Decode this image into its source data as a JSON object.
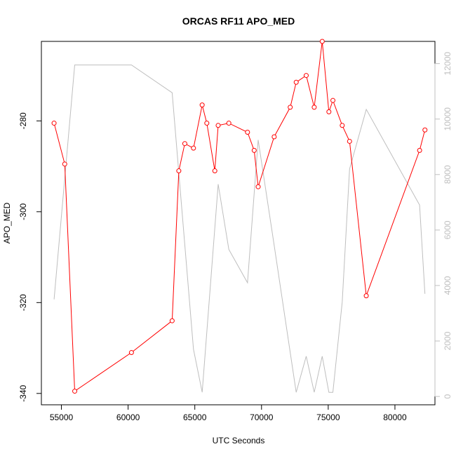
{
  "chart_data": {
    "type": "line",
    "title": "ORCAS RF11 APO_MED",
    "xlabel": "UTC Seconds",
    "ylabel": "APO_MED",
    "xlim": [
      53500,
      83000
    ],
    "ylim": [
      -342.5,
      -262.5
    ],
    "y2lim": [
      -300,
      12800
    ],
    "xticks": [
      55000,
      60000,
      65000,
      70000,
      75000,
      80000
    ],
    "yticks": [
      -340,
      -320,
      -300,
      -280
    ],
    "y2ticks": [
      0,
      2000,
      4000,
      6000,
      8000,
      10000,
      12000
    ],
    "series": [
      {
        "color": "#ff0000",
        "marker": "open-circle",
        "axis": "left",
        "x": [
          54450,
          55250,
          56000,
          60250,
          63300,
          63800,
          64250,
          64900,
          65550,
          65900,
          66500,
          66750,
          67550,
          68950,
          69450,
          69750,
          70950,
          72150,
          72600,
          73350,
          73950,
          74550,
          75050,
          75350,
          76050,
          76600,
          77850,
          81850,
          82250
        ],
        "y": [
          -280.5,
          -289.5,
          -339.5,
          -331,
          -324,
          -291,
          -285,
          -286,
          -276.5,
          -280.5,
          -291,
          -281,
          -280.5,
          -282.5,
          -286.5,
          -294.5,
          -283.5,
          -277,
          -271.5,
          -270,
          -277,
          -262.5,
          -278,
          -275.5,
          -281,
          -284.5,
          -318.5,
          -286.5,
          -282
        ]
      },
      {
        "color": "#bebebe",
        "marker": "none",
        "axis": "right",
        "x": [
          54450,
          56000,
          60250,
          63300,
          64900,
          65550,
          66750,
          67550,
          68950,
          69750,
          70950,
          72600,
          73350,
          73950,
          74550,
          75050,
          75350,
          76050,
          76600,
          77850,
          81850,
          82250
        ],
        "y": [
          3500,
          11950,
          11950,
          10950,
          1700,
          150,
          7650,
          5300,
          4100,
          9250,
          5450,
          150,
          1450,
          150,
          1450,
          150,
          150,
          3400,
          8200,
          10350,
          6900,
          3700
        ]
      }
    ]
  }
}
